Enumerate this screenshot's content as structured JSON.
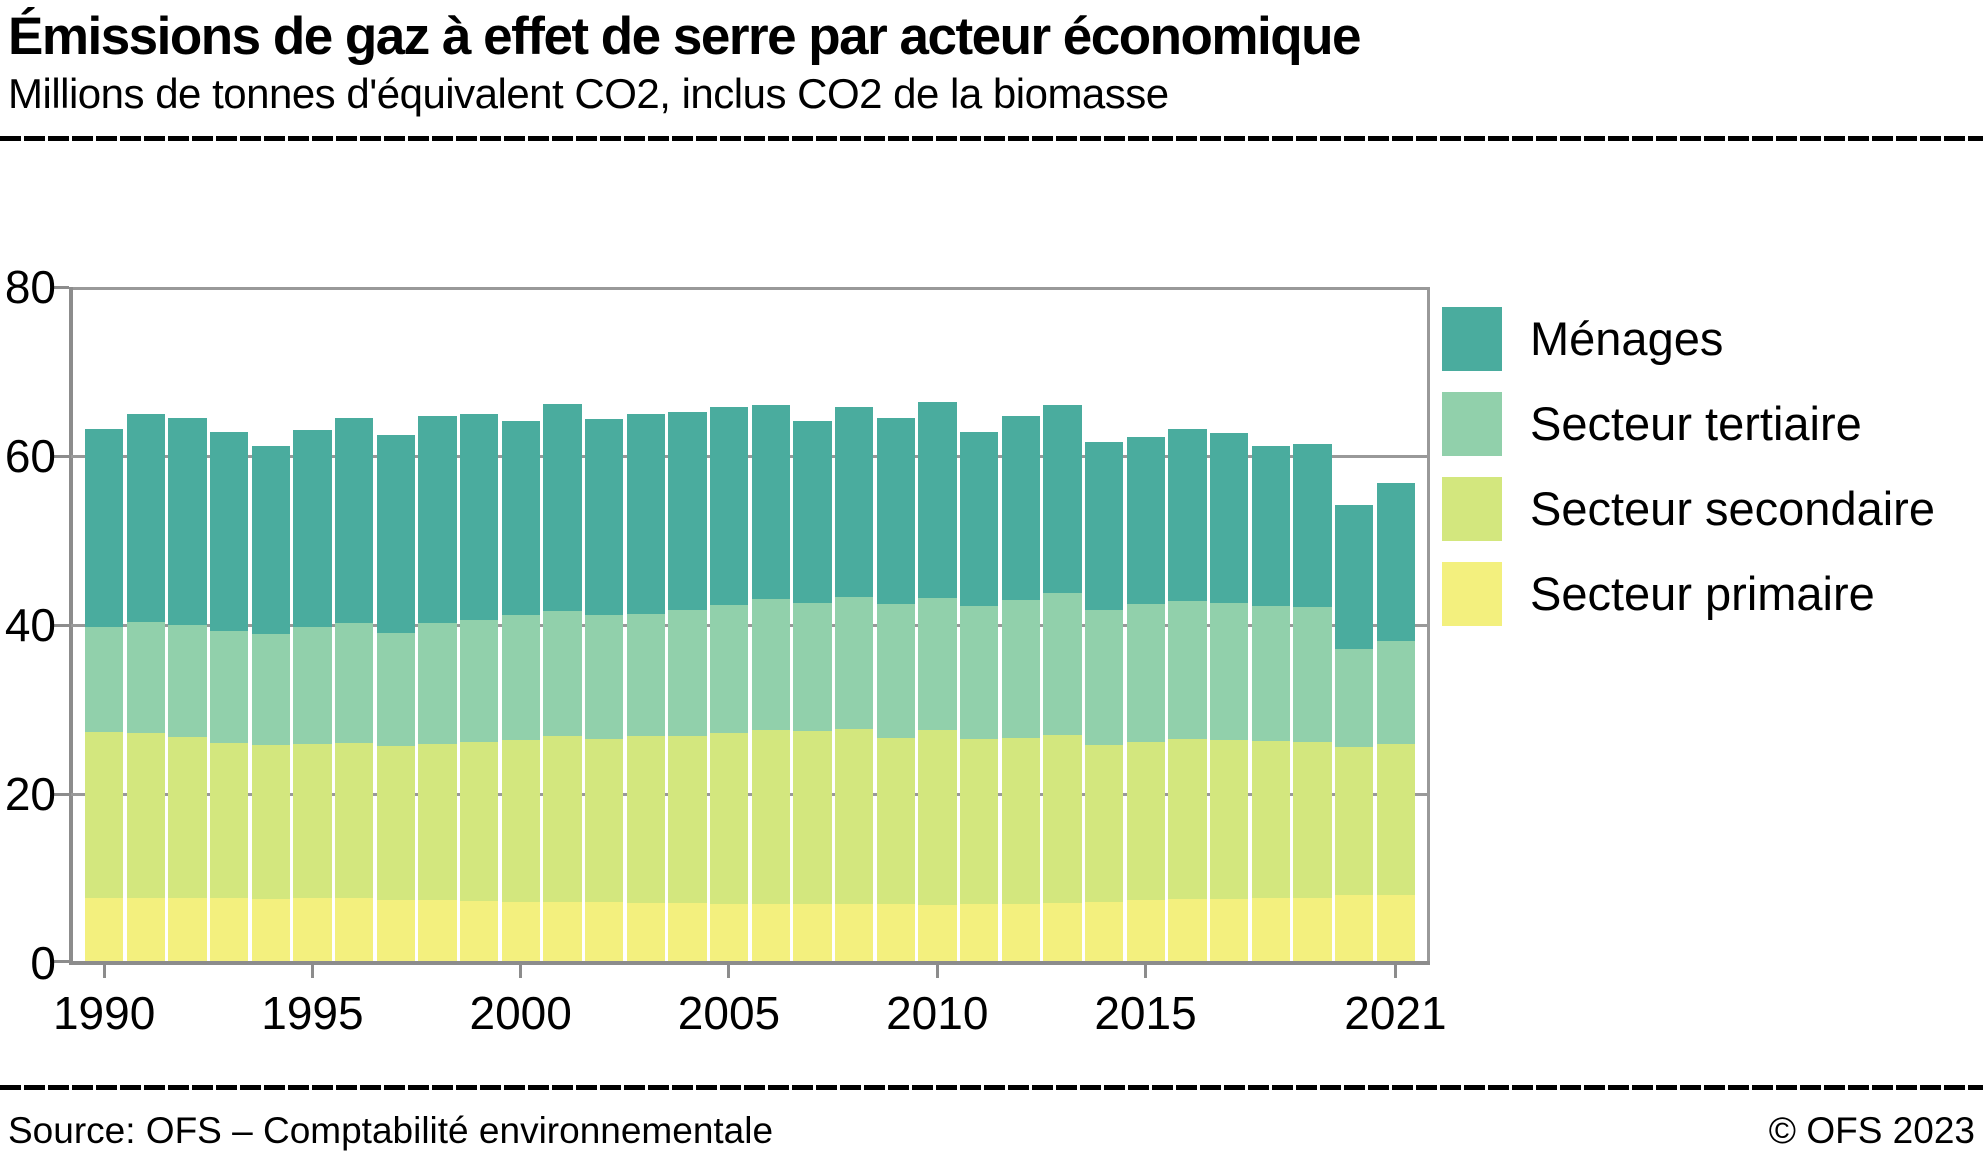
{
  "header": {
    "title": "Émissions de gaz à effet de serre par acteur économique",
    "subtitle": "Millions de tonnes d'équivalent CO2, inclus CO2 de la biomasse"
  },
  "chart_data": {
    "type": "bar",
    "stacked": true,
    "title": "Émissions de gaz à effet de serre par acteur économique",
    "unit_label": "Millions de tonnes d'équivalent CO2, inclus CO2 de la biomasse",
    "x": [
      1990,
      1991,
      1992,
      1993,
      1994,
      1995,
      1996,
      1997,
      1998,
      1999,
      2000,
      2001,
      2002,
      2003,
      2004,
      2005,
      2006,
      2007,
      2008,
      2009,
      2010,
      2011,
      2012,
      2013,
      2014,
      2015,
      2016,
      2017,
      2018,
      2019,
      2020,
      2021
    ],
    "x_tick_labels": [
      "1990",
      "1995",
      "2000",
      "2005",
      "2010",
      "2015",
      "2021"
    ],
    "ylim": [
      0,
      80
    ],
    "yticks": [
      0,
      20,
      40,
      60,
      80
    ],
    "grid": true,
    "legend_position": "right",
    "series": [
      {
        "name": "Secteur primaire",
        "slug": "secteur-primaire",
        "color": "#F3F07E",
        "values": [
          7.5,
          7.5,
          7.4,
          7.4,
          7.3,
          7.4,
          7.4,
          7.2,
          7.2,
          7.1,
          7.0,
          7.0,
          7.0,
          6.9,
          6.9,
          6.8,
          6.8,
          6.8,
          6.8,
          6.8,
          6.6,
          6.7,
          6.8,
          6.9,
          7.0,
          7.2,
          7.3,
          7.3,
          7.4,
          7.5,
          7.8,
          7.8
        ]
      },
      {
        "name": "Secteur secondaire",
        "slug": "secteur-secondaire",
        "color": "#D3E77E",
        "values": [
          19.6,
          19.5,
          19.1,
          18.4,
          18.3,
          18.3,
          18.4,
          18.2,
          18.5,
          18.8,
          19.2,
          19.6,
          19.3,
          19.7,
          19.7,
          20.2,
          20.5,
          20.4,
          20.6,
          19.6,
          20.7,
          19.6,
          19.6,
          19.8,
          18.6,
          18.7,
          19.0,
          18.9,
          18.6,
          18.4,
          17.5,
          17.9
        ]
      },
      {
        "name": "Secteur tertiaire",
        "slug": "secteur-tertiaire",
        "color": "#91D0AB",
        "values": [
          12.4,
          13.1,
          13.3,
          13.3,
          13.1,
          13.8,
          14.2,
          13.4,
          14.3,
          14.4,
          14.8,
          14.8,
          14.6,
          14.5,
          14.9,
          15.1,
          15.6,
          15.2,
          15.7,
          15.9,
          15.7,
          15.7,
          16.3,
          16.8,
          16.0,
          16.3,
          16.3,
          16.2,
          16.0,
          16.0,
          11.6,
          12.2
        ]
      },
      {
        "name": "Ménages",
        "slug": "menages",
        "color": "#4AAC9E",
        "values": [
          23.5,
          24.6,
          24.5,
          23.5,
          22.3,
          23.3,
          24.3,
          23.5,
          24.5,
          24.4,
          22.9,
          24.5,
          23.2,
          23.6,
          23.5,
          23.5,
          22.9,
          21.5,
          22.5,
          22.0,
          23.1,
          20.6,
          21.8,
          22.3,
          19.8,
          19.8,
          20.4,
          20.1,
          19.0,
          19.3,
          17.1,
          18.7
        ]
      }
    ],
    "totals": [
      63.0,
      64.7,
      64.3,
      62.6,
      61.0,
      62.8,
      64.3,
      62.3,
      64.5,
      64.7,
      63.9,
      65.9,
      64.1,
      64.7,
      65.0,
      65.6,
      65.8,
      63.9,
      65.6,
      64.3,
      66.1,
      62.6,
      64.5,
      65.8,
      61.4,
      62.0,
      63.0,
      62.5,
      61.0,
      61.2,
      54.0,
      56.6
    ]
  },
  "colors": {
    "menages": "#4AAC9E",
    "secteur_tertiaire": "#91D0AB",
    "secteur_secondaire": "#D3E77E",
    "secteur_primaire": "#F3F07E",
    "grid": "#999999",
    "axis": "#8C8C8C"
  },
  "footer": {
    "source": "Source: OFS – Comptabilité environnementale",
    "copyright": "© OFS 2023"
  }
}
